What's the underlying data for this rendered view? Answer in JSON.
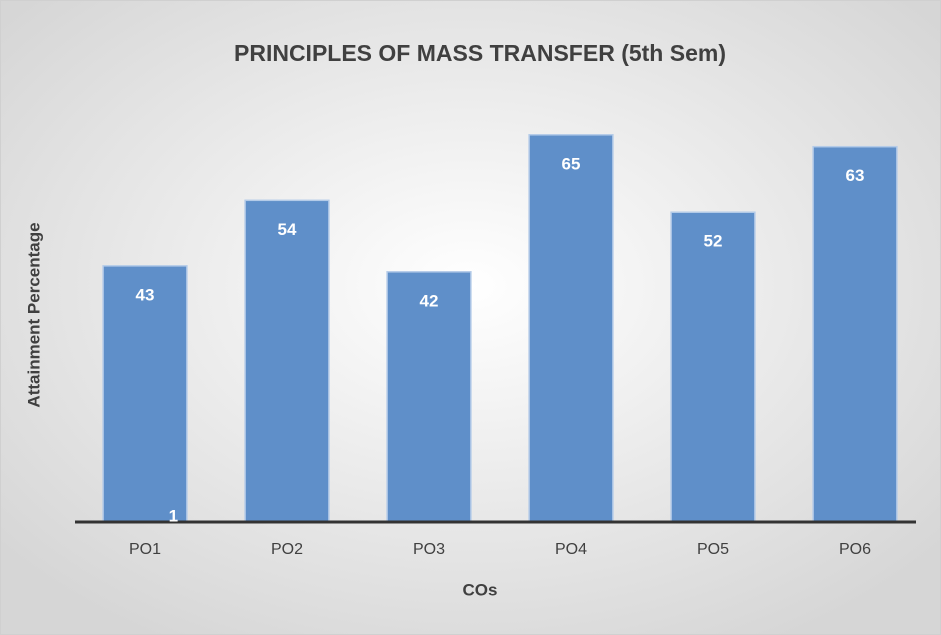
{
  "chart_data": {
    "type": "bar",
    "title": "PRINCIPLES OF MASS TRANSFER (5th Sem)",
    "x_label": "COs",
    "y_label": "Attainment Percentage",
    "categories": [
      "PO1",
      "PO2",
      "PO3",
      "PO4",
      "PO5",
      "PO6"
    ],
    "values": [
      43,
      54,
      42,
      65,
      52,
      63
    ],
    "color": "#5f8fc9",
    "ylim": [
      0,
      70
    ],
    "annotations": [
      "1"
    ]
  }
}
